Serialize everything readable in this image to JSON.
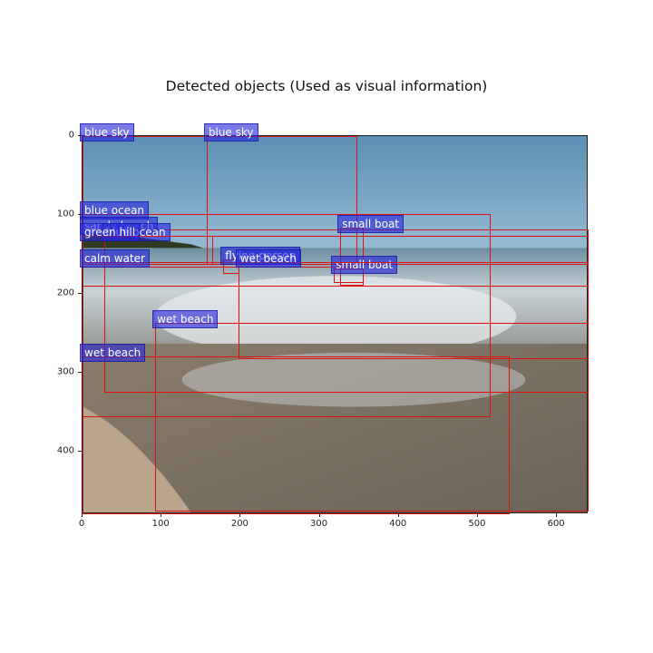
{
  "title": "Detected objects (Used as visual information)",
  "x_ticks": [
    "0",
    "100",
    "200",
    "300",
    "400",
    "500",
    "600"
  ],
  "y_ticks": [
    "0",
    "100",
    "200",
    "300",
    "400"
  ],
  "detections": [
    {
      "label": "blue sky",
      "x0": 0,
      "y0": 0,
      "x1": 348,
      "y1": 167
    },
    {
      "label": "blue sky",
      "x0": 157,
      "y0": 0,
      "x1": 348,
      "y1": 163
    },
    {
      "label": "blue ocean",
      "x0": 0,
      "y0": 99,
      "x1": 516,
      "y1": 357
    },
    {
      "label": "sandy beach",
      "x0": 0,
      "y0": 118,
      "x1": 640,
      "y1": 163
    },
    {
      "label": "blue ocean",
      "x0": 27,
      "y0": 127,
      "x1": 640,
      "y1": 326
    },
    {
      "label": "green hill",
      "x0": 0,
      "y0": 127,
      "x1": 165,
      "y1": 163
    },
    {
      "label": "small boat",
      "x0": 326,
      "y0": 116,
      "x1": 356,
      "y1": 190
    },
    {
      "label": "calm water",
      "x0": 0,
      "y0": 160,
      "x1": 640,
      "y1": 191
    },
    {
      "label": "flying person",
      "x0": 178,
      "y0": 157,
      "x1": 198,
      "y1": 175
    },
    {
      "label": "small boat",
      "x0": 318,
      "y0": 168,
      "x1": 356,
      "y1": 186
    },
    {
      "label": "wet beach",
      "x0": 197,
      "y0": 160,
      "x1": 640,
      "y1": 283
    },
    {
      "label": "wet beach",
      "x0": 92,
      "y0": 237,
      "x1": 640,
      "y1": 476
    },
    {
      "label": "wet beach",
      "x0": 0,
      "y0": 280,
      "x1": 540,
      "y1": 480
    }
  ],
  "colors": {
    "box": "#e01010",
    "label_bg": "#3a3ad8"
  },
  "axis": {
    "xlim": [
      0,
      640
    ],
    "ylim": [
      0,
      480
    ]
  }
}
